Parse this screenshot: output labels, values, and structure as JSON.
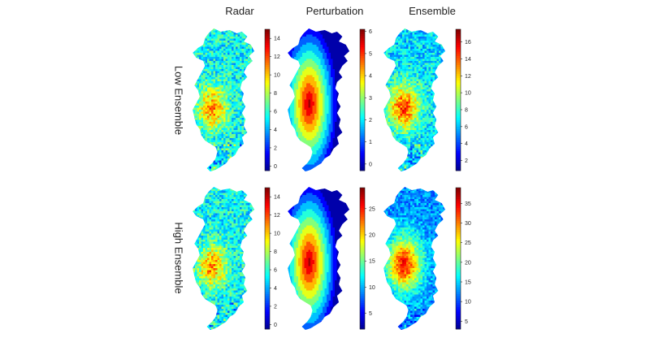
{
  "columns": [
    "Radar",
    "Perturbation",
    "Ensemble"
  ],
  "rows": [
    "Low Ensemble",
    "High Ensemble"
  ],
  "colormap": [
    "#00008f",
    "#0000ff",
    "#007fff",
    "#00ffff",
    "#7fff7f",
    "#ffff00",
    "#ff7f00",
    "#ff0000",
    "#7f0000"
  ],
  "panels": [
    {
      "name": "low-radar",
      "row": 0,
      "col": 0,
      "field": "radar",
      "colorbar": {
        "min": -0.5,
        "max": 15,
        "ticks": [
          "0",
          "2",
          "4",
          "6",
          "8",
          "10",
          "12",
          "14"
        ],
        "tick_values": [
          0,
          2,
          4,
          6,
          8,
          10,
          12,
          14
        ]
      }
    },
    {
      "name": "low-perturbation",
      "row": 0,
      "col": 1,
      "field": "pert",
      "colorbar": {
        "min": -0.3,
        "max": 6.1,
        "ticks": [
          "0",
          "1",
          "2",
          "3",
          "4",
          "5",
          "6"
        ],
        "tick_values": [
          0,
          1,
          2,
          3,
          4,
          5,
          6
        ]
      }
    },
    {
      "name": "low-ensemble",
      "row": 0,
      "col": 2,
      "field": "ens",
      "colorbar": {
        "min": 0.8,
        "max": 17.5,
        "ticks": [
          "2",
          "4",
          "6",
          "8",
          "10",
          "12",
          "14",
          "16"
        ],
        "tick_values": [
          2,
          4,
          6,
          8,
          10,
          12,
          14,
          16
        ]
      }
    },
    {
      "name": "high-radar",
      "row": 1,
      "col": 0,
      "field": "radar",
      "colorbar": {
        "min": -0.5,
        "max": 15,
        "ticks": [
          "0",
          "2",
          "4",
          "6",
          "8",
          "10",
          "12",
          "14"
        ],
        "tick_values": [
          0,
          2,
          4,
          6,
          8,
          10,
          12,
          14
        ]
      }
    },
    {
      "name": "high-perturbation",
      "row": 1,
      "col": 1,
      "field": "pert",
      "colorbar": {
        "min": 2,
        "max": 29,
        "ticks": [
          "5",
          "10",
          "15",
          "20",
          "25"
        ],
        "tick_values": [
          5,
          10,
          15,
          20,
          25
        ]
      }
    },
    {
      "name": "high-ensemble",
      "row": 1,
      "col": 2,
      "field": "ens",
      "colorbar": {
        "min": 3,
        "max": 39,
        "ticks": [
          "5",
          "10",
          "15",
          "20",
          "25",
          "30",
          "35"
        ],
        "tick_values": [
          5,
          10,
          15,
          20,
          25,
          30,
          35
        ]
      }
    }
  ]
}
